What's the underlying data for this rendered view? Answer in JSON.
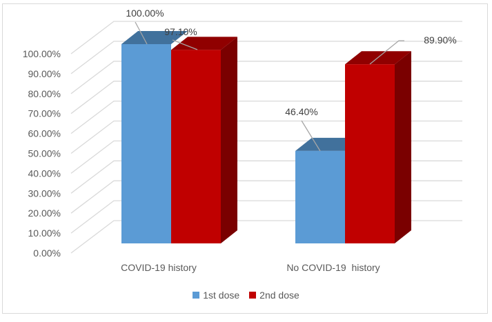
{
  "chart_data": {
    "type": "bar",
    "style": "3d-clustered-column",
    "title": "",
    "xlabel": "",
    "ylabel": "",
    "categories": [
      "COVID-19 history",
      "No COVID-19  history"
    ],
    "series": [
      {
        "name": "1st dose",
        "values": [
          100.0,
          46.4
        ],
        "labels": [
          "100.00%",
          "46.40%"
        ],
        "color": "#5B9BD5"
      },
      {
        "name": "2nd dose",
        "values": [
          97.1,
          89.9
        ],
        "labels": [
          "97.10%",
          "89.90%"
        ],
        "color": "#C00000"
      }
    ],
    "ylim": [
      0,
      100
    ],
    "yticks": [
      "0.00%",
      "10.00%",
      "20.00%",
      "30.00%",
      "40.00%",
      "50.00%",
      "60.00%",
      "70.00%",
      "80.00%",
      "90.00%",
      "100.00%"
    ],
    "grid": true,
    "legend_position": "bottom"
  },
  "legend": {
    "items": [
      {
        "label": "1st dose",
        "color": "#5B9BD5"
      },
      {
        "label": "2nd dose",
        "color": "#C00000"
      }
    ]
  }
}
